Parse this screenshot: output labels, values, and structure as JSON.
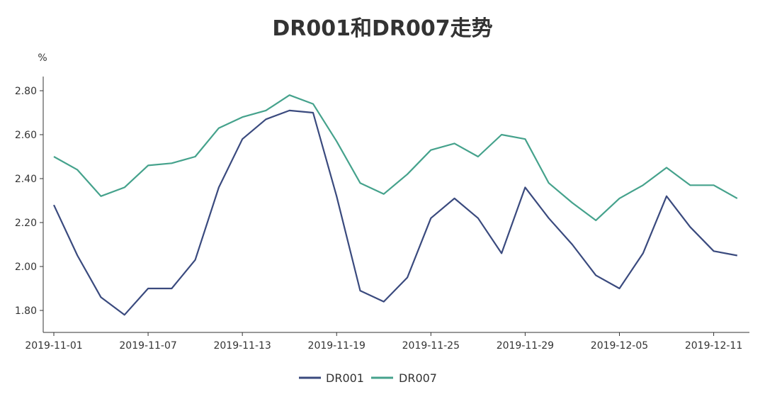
{
  "chart_data": {
    "type": "line",
    "title": "DR001和DR007走势",
    "ylabel": "%",
    "xlabel": "",
    "ylim": [
      1.7,
      2.86
    ],
    "y_ticks": [
      "1.80",
      "2.00",
      "2.20",
      "2.40",
      "2.60",
      "2.80"
    ],
    "x_tick_labels": [
      "2019-11-01",
      "2019-11-07",
      "2019-11-13",
      "2019-11-19",
      "2019-11-25",
      "2019-11-29",
      "2019-12-05",
      "2019-12-11"
    ],
    "x_tick_indices": [
      0,
      4,
      8,
      12,
      16,
      20,
      24,
      28
    ],
    "x": [
      "2019-11-01",
      "2019-11-04",
      "2019-11-05",
      "2019-11-06",
      "2019-11-07",
      "2019-11-08",
      "2019-11-11",
      "2019-11-12",
      "2019-11-13",
      "2019-11-14",
      "2019-11-15",
      "2019-11-18",
      "2019-11-19",
      "2019-11-20",
      "2019-11-21",
      "2019-11-22",
      "2019-11-25",
      "2019-11-26",
      "2019-11-27",
      "2019-11-28",
      "2019-11-29",
      "2019-12-02",
      "2019-12-03",
      "2019-12-04",
      "2019-12-05",
      "2019-12-06",
      "2019-12-09",
      "2019-12-10",
      "2019-12-11",
      "2019-12-12"
    ],
    "series": [
      {
        "name": "DR001",
        "color": "#3a4a7e",
        "values": [
          2.28,
          2.05,
          1.86,
          1.78,
          1.9,
          1.9,
          2.03,
          2.36,
          2.58,
          2.67,
          2.71,
          2.7,
          2.32,
          1.89,
          1.84,
          1.95,
          2.22,
          2.31,
          2.22,
          2.06,
          2.36,
          2.22,
          2.1,
          1.96,
          1.9,
          2.06,
          2.32,
          2.18,
          2.07,
          2.05
        ]
      },
      {
        "name": "DR007",
        "color": "#45a28c",
        "values": [
          2.5,
          2.44,
          2.32,
          2.36,
          2.46,
          2.47,
          2.5,
          2.63,
          2.68,
          2.71,
          2.78,
          2.74,
          2.57,
          2.38,
          2.33,
          2.42,
          2.53,
          2.56,
          2.5,
          2.6,
          2.58,
          2.38,
          2.29,
          2.21,
          2.31,
          2.37,
          2.45,
          2.37,
          2.37,
          2.31
        ]
      }
    ],
    "grid": false,
    "legend_position": "bottom-center"
  }
}
